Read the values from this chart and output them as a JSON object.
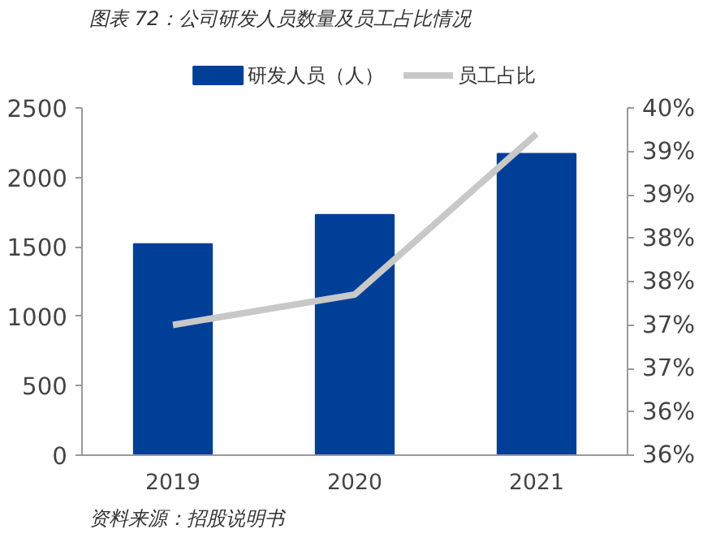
{
  "chart_data": {
    "type": "bar",
    "title": "图表 72：公司研发人员数量及员工占比情况",
    "categories": [
      "2019",
      "2020",
      "2021"
    ],
    "series": [
      {
        "name": "研发人员（人）",
        "color": "#003f98",
        "values": [
          1520,
          1730,
          2170
        ]
      },
      {
        "name": "员工占比",
        "type": "line",
        "axis": "y2",
        "color": "#c8c8c8",
        "values": [
          37.5,
          37.85,
          39.7
        ]
      }
    ],
    "ylim": [
      0,
      2500
    ],
    "yticks": [
      0,
      500,
      1000,
      1500,
      2000,
      2500
    ],
    "y2lim": [
      36,
      40
    ],
    "y2ticks": [
      {
        "value": 36,
        "label": "36%"
      },
      {
        "value": 36.5,
        "label": "36%"
      },
      {
        "value": 37,
        "label": "37%"
      },
      {
        "value": 37.5,
        "label": "37%"
      },
      {
        "value": 38,
        "label": "38%"
      },
      {
        "value": 38.5,
        "label": "38%"
      },
      {
        "value": 39,
        "label": "39%"
      },
      {
        "value": 39.5,
        "label": "39%"
      },
      {
        "value": 40,
        "label": "40%"
      }
    ],
    "legend": "top",
    "grid": false,
    "marker": "none",
    "annotations": [
      "资料来源：招股说明书"
    ]
  }
}
